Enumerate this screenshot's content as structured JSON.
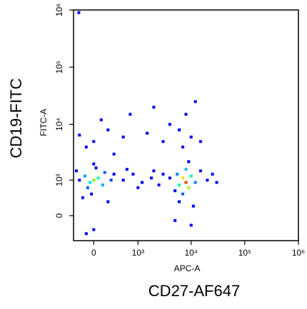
{
  "chart_data": {
    "type": "scatter",
    "x_label": "APC-A",
    "y_label": "FITC-A",
    "x_title": "CD27-AF647",
    "y_title": "CD19-FITC",
    "xscale": "biexponential",
    "yscale": "biexponential",
    "xlim": [
      -300,
      1000000
    ],
    "ylim": [
      -600,
      1000000
    ],
    "xticks": [
      0,
      {
        "value": 1000,
        "label": "10³"
      },
      {
        "value": 10000,
        "label": "10⁴"
      },
      {
        "value": 100000,
        "label": "10⁵"
      },
      {
        "value": 1000000,
        "label": "10⁶"
      }
    ],
    "yticks": [
      0,
      {
        "value": 1000,
        "label": "10³"
      },
      {
        "value": 10000,
        "label": "10⁴"
      },
      {
        "value": 100000,
        "label": "10⁵"
      },
      {
        "value": 1000000,
        "label": "10⁶"
      }
    ],
    "x": [
      0,
      -50,
      60,
      -120,
      120,
      -80,
      150,
      -200,
      250,
      30,
      -30,
      -150,
      200,
      0,
      300,
      -250,
      500,
      800,
      1200,
      1800,
      2500,
      3000,
      1000,
      2000,
      4000,
      600,
      8000,
      7000,
      9000,
      6000,
      10000,
      8000,
      5500,
      12000,
      7000,
      15000,
      5000,
      20000,
      9000,
      6000,
      11000,
      25000,
      30000,
      0,
      200,
      -100,
      100,
      500,
      1500,
      3000,
      4000,
      6000,
      8000,
      10000,
      2000,
      300,
      7000,
      15000,
      12000,
      700,
      -200,
      0,
      10000,
      5000,
      -100,
      -210
    ],
    "y": [
      1000,
      900,
      1100,
      1200,
      800,
      700,
      1400,
      1000,
      1000,
      1700,
      500,
      400,
      300,
      2000,
      1300,
      1500,
      1000,
      1300,
      900,
      1100,
      800,
      1300,
      700,
      1500,
      1100,
      1600,
      900,
      1100,
      700,
      800,
      1200,
      1600,
      1300,
      900,
      500,
      1500,
      600,
      1000,
      2200,
      300,
      200,
      1300,
      900,
      5000,
      8000,
      4000,
      12000,
      6000,
      7000,
      5000,
      10000,
      8000,
      15000,
      6000,
      20000,
      3000,
      4000,
      5000,
      25000,
      15000,
      6500,
      -300,
      -200,
      -100,
      -400,
      900000
    ],
    "colors": [
      "#7fff00",
      "#00e0ff",
      "#00ffc0",
      "#00a0ff",
      "#00a0ff",
      "#0060ff",
      "#0060ff",
      "#0000ff",
      "#0040ff",
      "#0000ff",
      "#0000ff",
      "#0000ff",
      "#0000ff",
      "#0000ff",
      "#0000ff",
      "#0000ff",
      "#0000ff",
      "#0000ff",
      "#0000ff",
      "#0000ff",
      "#0000ff",
      "#0000ff",
      "#0000ff",
      "#0000ff",
      "#0000ff",
      "#0000ff",
      "#ff4000",
      "#ffe000",
      "#a0ff00",
      "#00ffa0",
      "#00ffa0",
      "#00c0ff",
      "#0080ff",
      "#0080ff",
      "#0060ff",
      "#0000ff",
      "#0000ff",
      "#0000ff",
      "#0000ff",
      "#0000ff",
      "#0000ff",
      "#0000ff",
      "#0000ff",
      "#0000ff",
      "#0000ff",
      "#0000ff",
      "#0000ff",
      "#0000ff",
      "#0000ff",
      "#0000ff",
      "#0000ff",
      "#0000ff",
      "#0000ff",
      "#0000ff",
      "#0000ff",
      "#0000ff",
      "#0000ff",
      "#0000ff",
      "#0000ff",
      "#0000ff",
      "#0000ff",
      "#0000ff",
      "#0000ff",
      "#0000ff",
      "#0000ff",
      "#0000ff"
    ]
  }
}
